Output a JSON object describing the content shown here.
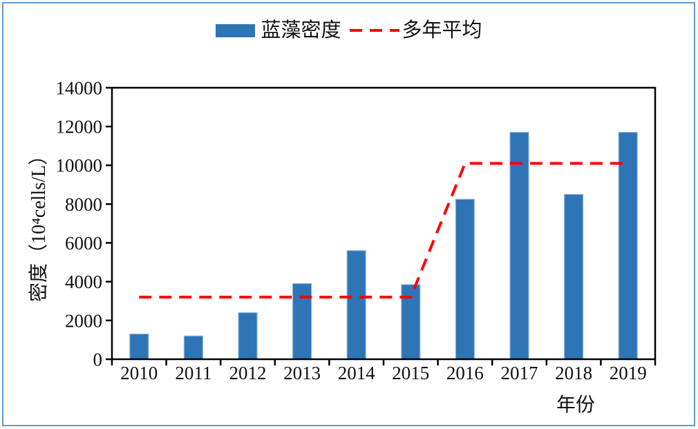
{
  "frame": {
    "border_color": "#5B9BD5",
    "background": "#FFFFFF"
  },
  "legend": {
    "items": [
      {
        "label": "蓝藻密度",
        "swatch": "bar",
        "color": "#2E75B6"
      },
      {
        "label": "多年平均",
        "swatch": "dashed-line",
        "color": "#FF0000"
      }
    ]
  },
  "chart_data": {
    "type": "bar",
    "title": "",
    "categories": [
      "2010",
      "2011",
      "2012",
      "2013",
      "2014",
      "2015",
      "2016",
      "2017",
      "2018",
      "2019"
    ],
    "series": [
      {
        "name": "蓝藻密度",
        "type": "bar",
        "color": "#2E75B6",
        "edge_color": "#8FB4DA",
        "values": [
          1300,
          1200,
          2400,
          3900,
          5600,
          3850,
          8250,
          11700,
          8500,
          11700
        ]
      },
      {
        "name": "多年平均",
        "type": "line",
        "line_style": "dashed",
        "color": "#FF0000",
        "values": [
          3200,
          3200,
          3200,
          3200,
          3200,
          3200,
          10100,
          10100,
          10100,
          10100
        ]
      }
    ],
    "xlabel": "年份",
    "ylabel": "密度（10⁴cells/L）",
    "ylim": [
      0,
      14000
    ],
    "ytick_interval": 2000,
    "yticks": [
      0,
      2000,
      4000,
      6000,
      8000,
      10000,
      12000,
      14000
    ],
    "grid": false,
    "legend_position": "top",
    "axis_color": "#000000"
  }
}
